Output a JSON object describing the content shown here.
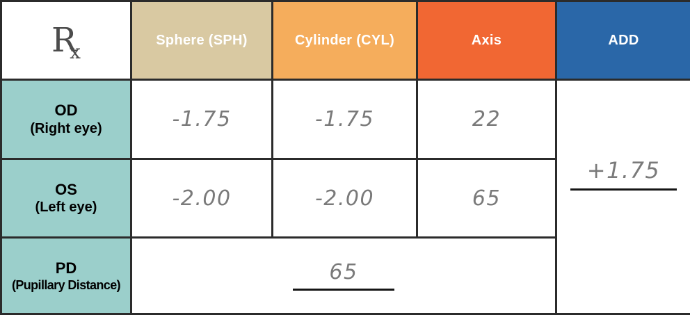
{
  "header": {
    "rx": {
      "main": "R",
      "sub": "x"
    },
    "columns": [
      {
        "id": "sph",
        "label": "Sphere (SPH)",
        "color": "#d9c9a2"
      },
      {
        "id": "cyl",
        "label": "Cylinder (CYL)",
        "color": "#f5ad5c"
      },
      {
        "id": "axis",
        "label": "Axis",
        "color": "#f16733"
      },
      {
        "id": "add",
        "label": "ADD",
        "color": "#2a67a8"
      }
    ]
  },
  "rows": [
    {
      "label": "OD",
      "sublabel": "(Right eye)",
      "sphere": "-1.75",
      "cylinder": "-1.75",
      "axis": "22"
    },
    {
      "label": "OS",
      "sublabel": "(Left eye)",
      "sphere": "-2.00",
      "cylinder": "-2.00",
      "axis": "65"
    }
  ],
  "pd": {
    "label": "PD",
    "sublabel": "(Pupillary Distance)",
    "value": "65"
  },
  "add": {
    "value": "+1.75"
  },
  "colors": {
    "row_header_bg": "#9bcfcb",
    "header_text": "#ffffff",
    "handwriting": "#7a7a7a",
    "border": "#2b2b2b",
    "underline": "#151515",
    "rx_symbol": "#4c4c4c",
    "label_text": "#000000"
  }
}
